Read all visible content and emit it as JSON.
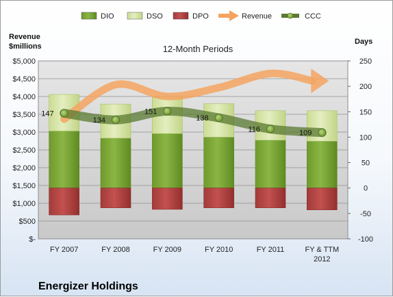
{
  "chart_data": {
    "type": "bar",
    "title": "12-Month Periods",
    "company": "Energizer Holdings",
    "y_left_label_line1": "Revenue",
    "y_left_label_line2": "$millions",
    "y_right_label": "Days",
    "categories": [
      [
        "FY 2007"
      ],
      [
        "FY 2008"
      ],
      [
        "FY 2009"
      ],
      [
        "FY 2010"
      ],
      [
        "FY 2011"
      ],
      [
        "FY & TTM",
        "2012"
      ]
    ],
    "y_left_ticks": [
      "$-",
      "$500",
      "$1,000",
      "$1,500",
      "$2,000",
      "$2,500",
      "$3,000",
      "$3,500",
      "$4,000",
      "$4,500",
      "$5,000"
    ],
    "y_left_lim": [
      0,
      5000
    ],
    "y_right_ticks": [
      "-100",
      "-50",
      "0",
      "50",
      "100",
      "150",
      "200",
      "250"
    ],
    "y_right_lim": [
      -100,
      250
    ],
    "grid": true,
    "legend_position": "top",
    "series": [
      {
        "name": "DIO",
        "axis": "right",
        "kind": "stacked-bar",
        "color": "#7ea83a",
        "values": [
          112,
          98,
          107,
          100,
          94,
          92
        ]
      },
      {
        "name": "DSO",
        "axis": "right",
        "kind": "stacked-bar",
        "color": "#d7e4a6",
        "values": [
          72,
          67,
          72,
          66,
          58,
          60
        ]
      },
      {
        "name": "DPO",
        "axis": "right",
        "kind": "stacked-bar-negative",
        "color": "#b94a48",
        "values": [
          -53,
          -39,
          -42,
          -39,
          -39,
          -43
        ]
      },
      {
        "name": "Revenue",
        "axis": "left",
        "kind": "trend-arrow",
        "color": "#f4a460",
        "values": [
          3365,
          4331,
          4000,
          4249,
          4646,
          4400
        ]
      },
      {
        "name": "CCC",
        "axis": "right",
        "kind": "line",
        "color": "#5a7a32",
        "values": [
          147,
          134,
          151,
          138,
          116,
          109
        ],
        "labels": [
          "147",
          "134",
          "151",
          "138",
          "116",
          "109"
        ]
      }
    ]
  }
}
